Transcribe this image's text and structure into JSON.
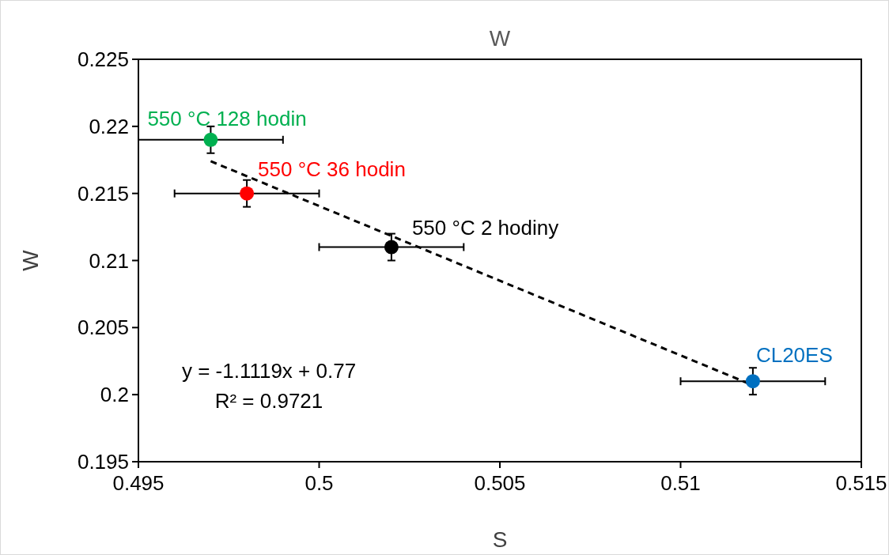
{
  "chart_data": {
    "type": "scatter",
    "title": "W",
    "xlabel": "S",
    "ylabel": "W",
    "xlim": [
      0.495,
      0.515
    ],
    "xticks": [
      0.495,
      0.5,
      0.505,
      0.51,
      0.515
    ],
    "ylim": [
      0.195,
      0.225
    ],
    "yticks": [
      0.195,
      0.2,
      0.205,
      0.21,
      0.215,
      0.22,
      0.225
    ],
    "grid": false,
    "series": [
      {
        "name": "550 °C 128 hodin",
        "color": "#00b050",
        "marker": "circle",
        "x": [
          0.497
        ],
        "values": [
          0.219
        ],
        "errors": [
          0.001
        ],
        "xerrors": [
          0.002
        ]
      },
      {
        "name": "550 °C 36 hodin",
        "color": "#ff0000",
        "marker": "circle",
        "x": [
          0.498
        ],
        "values": [
          0.215
        ],
        "errors": [
          0.001
        ],
        "xerrors": [
          0.002
        ]
      },
      {
        "name": "550 °C 2 hodiny",
        "color": "#000000",
        "marker": "circle",
        "x": [
          0.502
        ],
        "values": [
          0.211
        ],
        "errors": [
          0.001
        ],
        "xerrors": [
          0.002
        ]
      },
      {
        "name": "CL20ES",
        "color": "#0070c0",
        "marker": "circle",
        "x": [
          0.512
        ],
        "values": [
          0.201
        ],
        "errors": [
          0.001
        ],
        "xerrors": [
          0.002
        ]
      },
      {
        "type": "line",
        "color": "#000000",
        "line_style": "dashed",
        "marker": "none",
        "x": [
          0.497,
          0.512
        ],
        "values": [
          0.2174,
          0.2007
        ]
      }
    ],
    "annotations": [
      "y = -1.1119x + 0.77",
      "R² = 0.9721"
    ]
  }
}
